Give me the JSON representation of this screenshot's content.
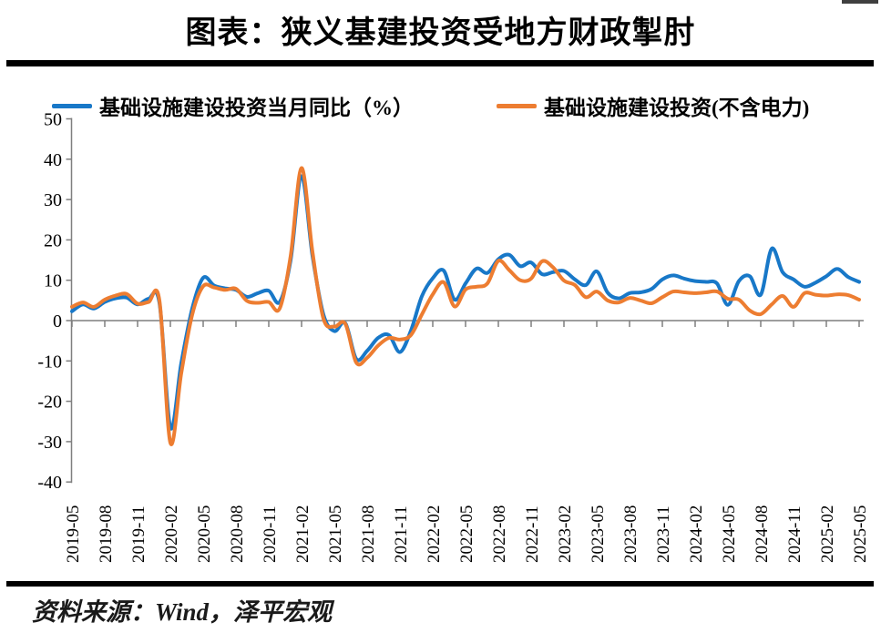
{
  "page": {
    "title": "图表：狭义基建投资受地方财政掣肘",
    "footer_source": "资料来源：Wind，泽平宏观"
  },
  "legend": {
    "items": [
      {
        "label": "基础设施建设投资当月同比（%）",
        "color": "#1878c8"
      },
      {
        "label": "基础设施建设投资(不含电力)",
        "color": "#ed7d31"
      }
    ]
  },
  "colors": {
    "series_blue": "#1878c8",
    "series_orange": "#ed7d31",
    "axis_gray": "#7f7f7f",
    "rule_black": "#000000",
    "corner_notch": "#3f3f3f",
    "text_black": "#000000"
  },
  "chart_data": {
    "type": "line",
    "title": "图表：狭义基建投资受地方财政掣肘",
    "xlabel": "",
    "ylabel": "",
    "ylim": [
      -40,
      50
    ],
    "y_ticks": [
      50,
      40,
      30,
      20,
      10,
      0,
      -10,
      -20,
      -30,
      -40
    ],
    "grid": "zero-line-only",
    "legend_position": "top",
    "x_start": "2019-05",
    "x_end": "2025-05",
    "x_step_months": 1,
    "x_tick_labels": [
      "2019-05",
      "2019-08",
      "2019-11",
      "2020-02",
      "2020-05",
      "2020-08",
      "2020-11",
      "2021-02",
      "2021-05",
      "2021-08",
      "2021-11",
      "2022-02",
      "2022-05",
      "2022-08",
      "2022-11",
      "2023-02",
      "2023-05",
      "2023-08",
      "2023-11",
      "2024-02",
      "2024-05",
      "2024-08",
      "2024-11",
      "2025-02",
      "2025-05"
    ],
    "series": [
      {
        "name": "基础设施建设投资当月同比（%）",
        "color": "#1878c8",
        "values": [
          2.3,
          4.0,
          3.0,
          4.6,
          5.5,
          5.7,
          4.0,
          5.4,
          4.4,
          -26.5,
          -10.5,
          3.0,
          10.6,
          8.7,
          8.0,
          7.6,
          5.9,
          6.8,
          7.4,
          4.6,
          15.0,
          35.8,
          16.0,
          1.5,
          -2.6,
          -0.6,
          -9.5,
          -7.5,
          -4.3,
          -3.6,
          -7.8,
          -2.5,
          6.0,
          10.5,
          12.4,
          5.2,
          9.2,
          12.9,
          11.8,
          15.2,
          16.3,
          13.5,
          14.4,
          11.5,
          12.0,
          12.3,
          10.2,
          8.8,
          12.2,
          6.9,
          5.5,
          6.8,
          7.0,
          7.8,
          10.2,
          11.2,
          10.4,
          9.8,
          9.6,
          9.2,
          3.9,
          9.8,
          11.0,
          6.4,
          17.8,
          12.0,
          10.2,
          8.4,
          9.4,
          11.0,
          12.8,
          10.8,
          9.6
        ]
      },
      {
        "name": "基础设施建设投资(不含电力)",
        "color": "#ed7d31",
        "values": [
          3.4,
          4.5,
          3.4,
          5.2,
          6.2,
          6.6,
          4.2,
          4.6,
          5.0,
          -30.3,
          -13.0,
          1.5,
          8.5,
          8.2,
          7.6,
          7.9,
          4.9,
          4.4,
          4.6,
          3.0,
          16.0,
          37.8,
          17.0,
          0.5,
          -1.5,
          -0.8,
          -10.4,
          -9.2,
          -6.2,
          -4.3,
          -4.7,
          -3.6,
          1.5,
          6.5,
          9.5,
          3.5,
          7.7,
          8.4,
          9.2,
          14.8,
          12.5,
          10.0,
          10.4,
          14.7,
          13.2,
          9.9,
          8.8,
          5.8,
          7.2,
          5.0,
          4.5,
          5.6,
          5.0,
          4.3,
          5.8,
          7.2,
          7.0,
          6.8,
          7.0,
          7.2,
          5.4,
          5.2,
          2.5,
          1.6,
          4.0,
          6.1,
          3.4,
          6.8,
          6.4,
          6.2,
          6.5,
          6.3,
          5.2
        ]
      }
    ]
  }
}
